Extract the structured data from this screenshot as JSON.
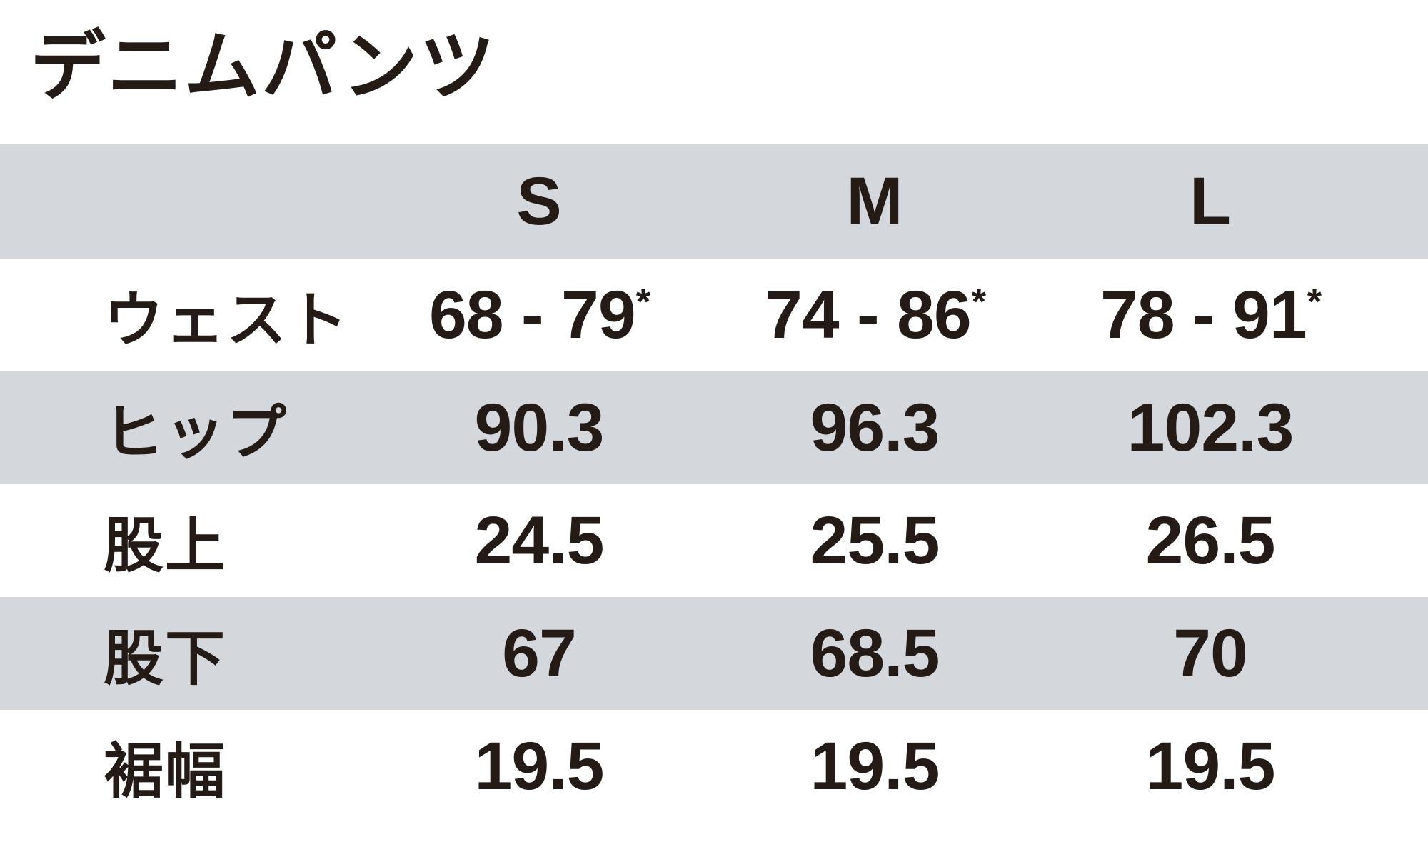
{
  "title": "デニムパンツ",
  "table": {
    "sizes": [
      "S",
      "M",
      "L"
    ],
    "rows": [
      {
        "label": "ウェスト",
        "cells": [
          {
            "text": "68 - 79",
            "sup": "*"
          },
          {
            "text": "74 - 86",
            "sup": "*"
          },
          {
            "text": "78 - 91",
            "sup": "*"
          }
        ]
      },
      {
        "label": "ヒップ",
        "cells": [
          {
            "text": "90.3",
            "sup": ""
          },
          {
            "text": "96.3",
            "sup": ""
          },
          {
            "text": "102.3",
            "sup": ""
          }
        ]
      },
      {
        "label": "股上",
        "cells": [
          {
            "text": "24.5",
            "sup": ""
          },
          {
            "text": "25.5",
            "sup": ""
          },
          {
            "text": "26.5",
            "sup": ""
          }
        ]
      },
      {
        "label": "股下",
        "cells": [
          {
            "text": "67",
            "sup": ""
          },
          {
            "text": "68.5",
            "sup": ""
          },
          {
            "text": "70",
            "sup": ""
          }
        ]
      },
      {
        "label": "裾幅",
        "cells": [
          {
            "text": "19.5",
            "sup": ""
          },
          {
            "text": "19.5",
            "sup": ""
          },
          {
            "text": "19.5",
            "sup": ""
          }
        ]
      }
    ]
  },
  "colors": {
    "band_gray": "#d4d7db",
    "text_ink": "#241a16",
    "background": "#ffffff"
  },
  "chart_data": {
    "type": "table",
    "title": "デニムパンツ",
    "columns": [
      "S",
      "M",
      "L"
    ],
    "row_labels": [
      "ウェスト",
      "ヒップ",
      "股上",
      "股下",
      "裾幅"
    ],
    "rows": [
      [
        "68 - 79*",
        "74 - 86*",
        "78 - 91*"
      ],
      [
        "90.3",
        "96.3",
        "102.3"
      ],
      [
        "24.5",
        "25.5",
        "26.5"
      ],
      [
        "67",
        "68.5",
        "70"
      ],
      [
        "19.5",
        "19.5",
        "19.5"
      ]
    ]
  }
}
